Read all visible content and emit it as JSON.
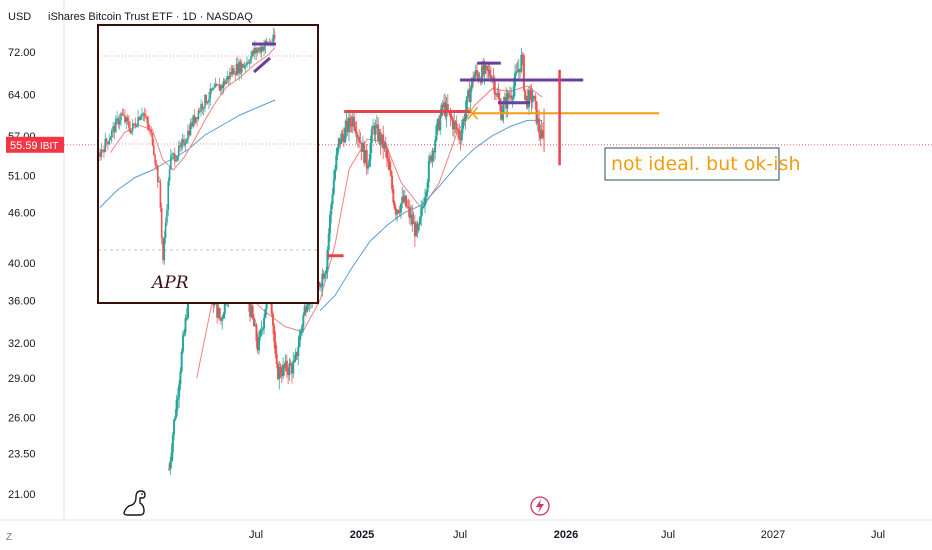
{
  "header": {
    "currency": "USD",
    "title": "iShares Bitcoin Trust ETF · 1D · NASDAQ"
  },
  "price_tag": {
    "value": "55.59",
    "symbol": "IBIT",
    "color": "#f23645"
  },
  "annotations": {
    "note": "not ideal. but ok-ish",
    "apr": "APR"
  },
  "footer": {
    "timezone_icon": "Z"
  },
  "colors": {
    "up": "#26a69a",
    "down": "#ef5350",
    "ma_fast": "#f08080",
    "ma_slow": "#5b9bd5",
    "drawing_red": "#e8434f",
    "drawing_purple": "#6a3fa0",
    "drawing_orange": "#f39c12",
    "box": "#3a0e0e"
  },
  "chart_data": {
    "type": "candlestick",
    "title": "iShares Bitcoin Trust ETF · 1D · NASDAQ",
    "y_scale": "log",
    "ylim": [
      19.5,
      78
    ],
    "y_ticks": [
      72.0,
      64.0,
      57.0,
      51.0,
      46.0,
      40.0,
      36.0,
      32.0,
      29.0,
      26.0,
      23.5,
      21.0
    ],
    "x_ticks": [
      "Jul",
      "2025",
      "Jul",
      "2026",
      "Jul",
      "2027",
      "Jul"
    ],
    "last_price": 55.59,
    "price_series": [
      [
        "2024-02-01",
        22.5
      ],
      [
        "2024-02-15",
        27.5
      ],
      [
        "2024-03-01",
        34.0
      ],
      [
        "2024-03-13",
        41.0
      ],
      [
        "2024-04-01",
        39.0
      ],
      [
        "2024-05-01",
        34.0
      ],
      [
        "2024-05-20",
        39.5
      ],
      [
        "2024-06-10",
        38.0
      ],
      [
        "2024-07-05",
        31.5
      ],
      [
        "2024-07-25",
        38.0
      ],
      [
        "2024-08-05",
        29.5
      ],
      [
        "2024-09-06",
        30.0
      ],
      [
        "2024-09-28",
        36.5
      ],
      [
        "2024-10-15",
        37.0
      ],
      [
        "2024-10-31",
        40.0
      ],
      [
        "2024-11-12",
        50.0
      ],
      [
        "2024-11-22",
        56.0
      ],
      [
        "2024-12-17",
        60.0
      ],
      [
        "2025-01-10",
        52.5
      ],
      [
        "2025-01-21",
        58.5
      ],
      [
        "2025-02-10",
        55.0
      ],
      [
        "2025-02-28",
        46.5
      ],
      [
        "2025-03-15",
        47.5
      ],
      [
        "2025-04-08",
        43.0
      ],
      [
        "2025-05-01",
        54.0
      ],
      [
        "2025-05-22",
        62.0
      ],
      [
        "2025-06-20",
        57.0
      ],
      [
        "2025-07-14",
        67.5
      ],
      [
        "2025-08-14",
        68.0
      ],
      [
        "2025-08-30",
        61.0
      ],
      [
        "2025-09-20",
        65.0
      ],
      [
        "2025-10-06",
        71.0
      ],
      [
        "2025-10-11",
        63.0
      ],
      [
        "2025-10-25",
        63.5
      ],
      [
        "2025-11-04",
        58.0
      ],
      [
        "2025-11-13",
        55.59
      ]
    ],
    "ma_fast": [
      [
        "2024-03-20",
        29.0
      ],
      [
        "2024-04-20",
        37.0
      ],
      [
        "2024-06-01",
        37.5
      ],
      [
        "2024-07-15",
        35.0
      ],
      [
        "2024-08-20",
        33.5
      ],
      [
        "2024-09-20",
        33.0
      ],
      [
        "2024-10-20",
        36.0
      ],
      [
        "2024-11-15",
        42.0
      ],
      [
        "2024-12-10",
        52.0
      ],
      [
        "2025-01-10",
        56.5
      ],
      [
        "2025-02-10",
        56.0
      ],
      [
        "2025-03-10",
        50.0
      ],
      [
        "2025-04-15",
        46.5
      ],
      [
        "2025-05-15",
        50.0
      ],
      [
        "2025-06-15",
        57.5
      ],
      [
        "2025-07-15",
        62.0
      ],
      [
        "2025-08-15",
        65.0
      ],
      [
        "2025-09-15",
        64.5
      ],
      [
        "2025-10-15",
        65.5
      ],
      [
        "2025-11-10",
        63.5
      ]
    ],
    "ma_slow": [
      [
        "2024-10-20",
        35.0
      ],
      [
        "2024-11-15",
        36.5
      ],
      [
        "2024-12-15",
        39.5
      ],
      [
        "2025-01-15",
        42.5
      ],
      [
        "2025-02-15",
        44.5
      ],
      [
        "2025-03-15",
        46.0
      ],
      [
        "2025-04-15",
        47.0
      ],
      [
        "2025-05-15",
        49.5
      ],
      [
        "2025-06-15",
        52.5
      ],
      [
        "2025-07-15",
        55.0
      ],
      [
        "2025-08-15",
        57.0
      ],
      [
        "2025-09-15",
        58.5
      ],
      [
        "2025-10-15",
        59.5
      ],
      [
        "2025-11-10",
        59.5
      ]
    ],
    "inset": {
      "description": "prior rally",
      "price_series": [
        [
          0.0,
          0.55
        ],
        [
          0.06,
          0.62
        ],
        [
          0.12,
          0.7
        ],
        [
          0.18,
          0.64
        ],
        [
          0.24,
          0.72
        ],
        [
          0.3,
          0.6
        ],
        [
          0.34,
          0.4
        ],
        [
          0.36,
          0.12
        ],
        [
          0.4,
          0.52
        ],
        [
          0.46,
          0.56
        ],
        [
          0.52,
          0.66
        ],
        [
          0.58,
          0.74
        ],
        [
          0.64,
          0.79
        ],
        [
          0.7,
          0.82
        ],
        [
          0.76,
          0.88
        ],
        [
          0.82,
          0.9
        ],
        [
          0.88,
          0.95
        ],
        [
          0.94,
          0.98
        ],
        [
          1.0,
          1.0
        ]
      ],
      "ma_fast": [
        [
          0.06,
          0.55
        ],
        [
          0.14,
          0.63
        ],
        [
          0.22,
          0.66
        ],
        [
          0.3,
          0.64
        ],
        [
          0.36,
          0.52
        ],
        [
          0.42,
          0.48
        ],
        [
          0.48,
          0.53
        ],
        [
          0.54,
          0.6
        ],
        [
          0.6,
          0.68
        ],
        [
          0.66,
          0.75
        ],
        [
          0.72,
          0.81
        ],
        [
          0.8,
          0.85
        ],
        [
          0.88,
          0.9
        ],
        [
          0.96,
          0.94
        ],
        [
          1.0,
          0.97
        ]
      ],
      "ma_slow": [
        [
          0.0,
          0.33
        ],
        [
          0.1,
          0.4
        ],
        [
          0.2,
          0.45
        ],
        [
          0.3,
          0.48
        ],
        [
          0.4,
          0.52
        ],
        [
          0.5,
          0.56
        ],
        [
          0.6,
          0.62
        ],
        [
          0.7,
          0.66
        ],
        [
          0.8,
          0.7
        ],
        [
          0.9,
          0.73
        ],
        [
          1.0,
          0.76
        ]
      ]
    },
    "drawings": [
      {
        "kind": "hline",
        "color": "drawing_red",
        "from": "2024-12-01",
        "to": "2025-07-10",
        "price": 61.0
      },
      {
        "kind": "hline",
        "color": "drawing_red",
        "from": "2024-11-01",
        "to": "2024-11-30",
        "price": 40.8
      },
      {
        "kind": "hline",
        "color": "drawing_orange",
        "from": "2025-07-10",
        "to": "2026-06-01",
        "price": 60.7
      },
      {
        "kind": "hline",
        "color": "drawing_purple",
        "from": "2025-06-20",
        "to": "2026-01-20",
        "price": 66.6
      },
      {
        "kind": "hline",
        "color": "drawing_purple",
        "from": "2025-07-20",
        "to": "2025-08-30",
        "price": 69.8
      },
      {
        "kind": "hline",
        "color": "drawing_purple",
        "from": "2025-08-25",
        "to": "2025-10-20",
        "price": 62.5
      },
      {
        "kind": "vline",
        "color": "drawing_red",
        "date": "2025-12-10",
        "from": 68.5,
        "to": 52.5
      }
    ]
  }
}
